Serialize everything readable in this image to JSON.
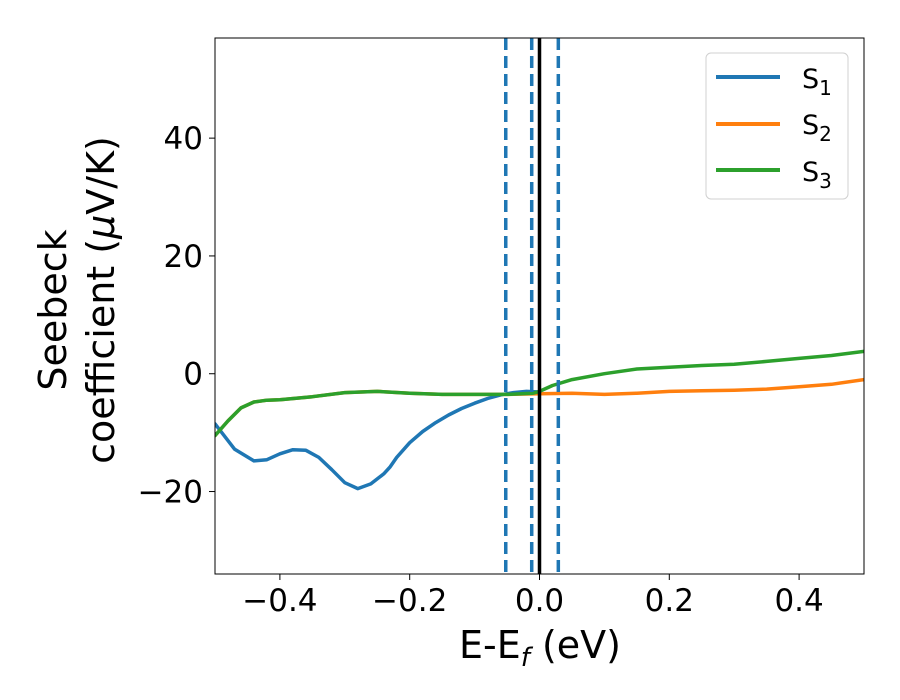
{
  "chart_data": {
    "type": "line",
    "xlabel": "E-E",
    "xlabel_sub": "f",
    "xlabel_unit": " (eV)",
    "ylabel_line1": "Seebeck",
    "ylabel_line2": "coefficient  (",
    "ylabel_mu": "μ",
    "ylabel_unit": "V/K)",
    "xlim": [
      -0.5,
      0.5
    ],
    "ylim": [
      -34,
      57
    ],
    "xticks": [
      -0.4,
      -0.2,
      0.0,
      0.2,
      0.4
    ],
    "xtick_labels": [
      "−0.4",
      "−0.2",
      "0.0",
      "0.2",
      "0.4"
    ],
    "yticks": [
      -20,
      0,
      20,
      40
    ],
    "ytick_labels": [
      "−20",
      "0",
      "20",
      "40"
    ],
    "grid": false,
    "legend": "top-right",
    "vlines_dashed": {
      "x": [
        -0.052,
        -0.012,
        0.029
      ],
      "color": "#1f77b4"
    },
    "vline_solid": {
      "x": 0.0,
      "color": "#000000"
    },
    "series": [
      {
        "label": "S",
        "sub": "1",
        "color": "#1f77b4",
        "x": [
          -0.5,
          -0.47,
          -0.44,
          -0.42,
          -0.4,
          -0.38,
          -0.36,
          -0.34,
          -0.32,
          -0.3,
          -0.28,
          -0.26,
          -0.24,
          -0.23,
          -0.22,
          -0.2,
          -0.18,
          -0.16,
          -0.14,
          -0.12,
          -0.1,
          -0.08,
          -0.06,
          -0.04,
          -0.02,
          0.0
        ],
        "y": [
          -8.5,
          -12.8,
          -14.8,
          -14.6,
          -13.6,
          -12.9,
          -13.0,
          -14.2,
          -16.3,
          -18.5,
          -19.5,
          -18.7,
          -17.0,
          -15.8,
          -14.2,
          -11.7,
          -9.8,
          -8.3,
          -7.0,
          -5.9,
          -5.0,
          -4.2,
          -3.6,
          -3.2,
          -3.0,
          -3.1
        ]
      },
      {
        "label": "S",
        "sub": "2",
        "color": "#ff7f0e",
        "x": [
          -0.5,
          -0.48,
          -0.46,
          -0.44,
          -0.42,
          -0.4,
          -0.35,
          -0.3,
          -0.25,
          -0.2,
          -0.15,
          -0.1,
          -0.05,
          0.0,
          0.05,
          0.1,
          0.15,
          0.2,
          0.25,
          0.3,
          0.35,
          0.4,
          0.45,
          0.5
        ],
        "y": [
          -10.5,
          -8.0,
          -5.8,
          -4.8,
          -4.5,
          -4.4,
          -3.9,
          -3.2,
          -3.0,
          -3.3,
          -3.5,
          -3.5,
          -3.5,
          -3.4,
          -3.3,
          -3.5,
          -3.3,
          -3.0,
          -2.9,
          -2.8,
          -2.6,
          -2.2,
          -1.8,
          -1.0
        ]
      },
      {
        "label": "S",
        "sub": "3",
        "color": "#2ca02c",
        "x": [
          -0.5,
          -0.48,
          -0.46,
          -0.44,
          -0.42,
          -0.4,
          -0.35,
          -0.3,
          -0.25,
          -0.2,
          -0.15,
          -0.1,
          -0.05,
          -0.01,
          0.0,
          0.02,
          0.05,
          0.1,
          0.15,
          0.2,
          0.25,
          0.3,
          0.35,
          0.4,
          0.45,
          0.5
        ],
        "y": [
          -10.5,
          -8.0,
          -5.8,
          -4.8,
          -4.5,
          -4.4,
          -3.9,
          -3.2,
          -3.0,
          -3.3,
          -3.5,
          -3.5,
          -3.5,
          -3.3,
          -3.0,
          -2.0,
          -1.0,
          0.0,
          0.8,
          1.1,
          1.4,
          1.6,
          2.1,
          2.6,
          3.1,
          3.8
        ]
      }
    ]
  }
}
